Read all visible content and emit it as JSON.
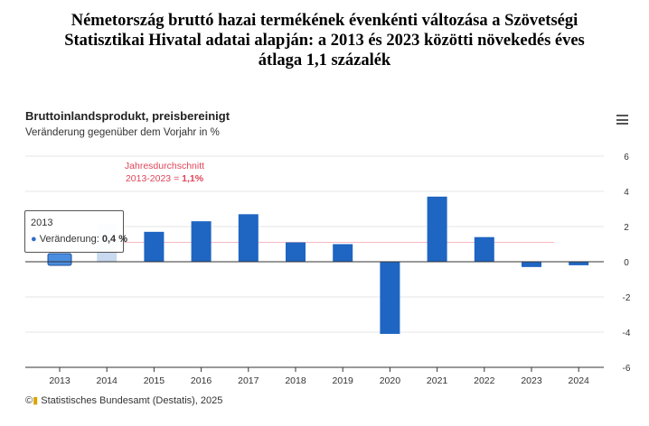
{
  "title_lines": [
    "Németország bruttó hazai termékének évenkénti változása a Szövetségi",
    "Statisztikai Hivatal adatai alapján: a 2013 és 2023 közötti növekedés éves",
    "átlaga 1,1 százalék"
  ],
  "chart_data": {
    "type": "bar",
    "title": "Bruttoinlandsprodukt, preisbereinigt",
    "subtitle": "Veränderung gegenüber dem Vorjahr in %",
    "categories": [
      "2013",
      "2014",
      "2015",
      "2016",
      "2017",
      "2018",
      "2019",
      "2020",
      "2021",
      "2022",
      "2023",
      "2024"
    ],
    "values": [
      0.4,
      2.2,
      1.7,
      2.3,
      2.7,
      1.1,
      1.0,
      -4.1,
      3.7,
      1.4,
      -0.3,
      -0.2
    ],
    "ylim": [
      -6,
      6
    ],
    "yticks": [
      "6",
      "4",
      "2",
      "0",
      "-2",
      "-4",
      "-6"
    ],
    "ytick_values": [
      6,
      4,
      2,
      0,
      -2,
      -4,
      -6
    ],
    "average": {
      "value": 1.1,
      "label_line1": "Jahresdurchschnitt",
      "label_line2_prefix": "2013-2023 = ",
      "label_value": "1,1%",
      "range": [
        "2013",
        "2023"
      ]
    },
    "tooltip": {
      "year": "2013",
      "label": "Veränderung:",
      "value": "0,4 %"
    },
    "bar_color": "#1f65c2",
    "avg_color": "#e0455a"
  },
  "source": "Statistisches Bundesamt (Destatis), 2025"
}
